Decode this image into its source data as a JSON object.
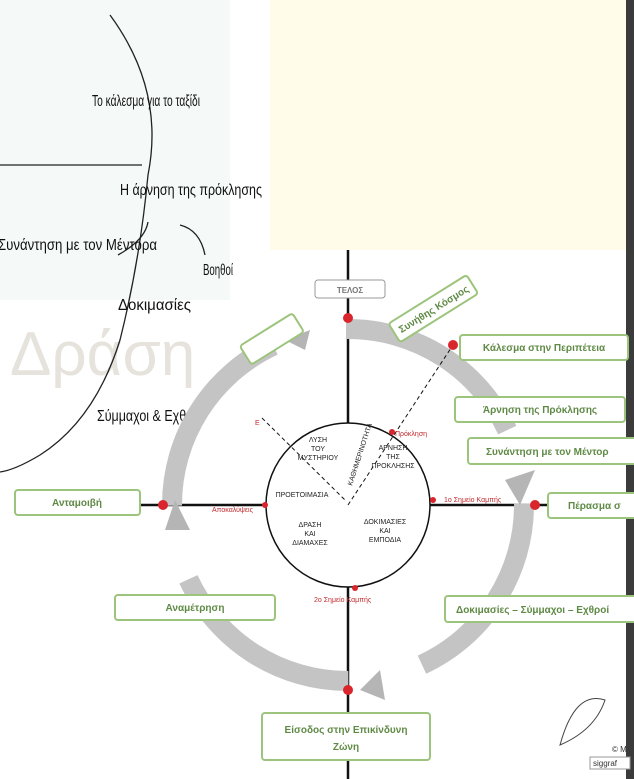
{
  "left_diagram": {
    "watermark": "Δράση",
    "labels": [
      "Το κάλεσμα για το ταξίδι",
      "Η άρνηση της πρόκλησης",
      "Συνάντηση με τον Μέντορα",
      "Βοηθοί",
      "Δοκιμασίες",
      "Σύμμαχοι & Εχθροί"
    ]
  },
  "right_diagram": {
    "end": "ΤΕΛΟΣ",
    "stages": [
      "Συνήθης Κόσμος",
      "Κάλεσμα στην Περιπέτεια",
      "Άρνηση της Πρόκλησης",
      "Συνάντηση με τον Μέντορ",
      "Πέρασμα σ",
      "Δοκιμασίες – Σύμμαχοι – Εχθροί",
      "Αναμέτρηση",
      "Ανταμοιβή"
    ],
    "entry": [
      "Είσοδος στην Επικίνδυνη",
      "Ζώνη"
    ],
    "inner": {
      "solution": [
        "ΛΥΣΗ",
        "ΤΟΥ",
        "ΜΥΣΤΗΡΙΟΥ"
      ],
      "refusal": [
        "ΑΡΝΗΣΗ",
        "ΤΗΣ",
        "ΠΡΟΚΛΗΣΗΣ"
      ],
      "preparation": "ΠΡΟΕΤΟΙΜΑΣΙΑ",
      "action": [
        "ΔΡΑΣΗ",
        "ΚΑΙ",
        "ΔΙΑΜΑΧΕΣ"
      ],
      "trials": [
        "ΔΟΚΙΜΑΣΙΕΣ",
        "ΚΑΙ",
        "ΕΜΠΟΔΙΑ"
      ],
      "daily": "ΚΑΘΗΜΕΡΙΝΟΤΗΤΑ"
    },
    "points": [
      "Πρόκληση",
      "1ο Σημείο Καμπής",
      "2ο Σημείο Καμπής",
      "Αποκαλύψεις",
      "Ε"
    ],
    "credit": [
      "© M",
      "siggraf"
    ]
  }
}
